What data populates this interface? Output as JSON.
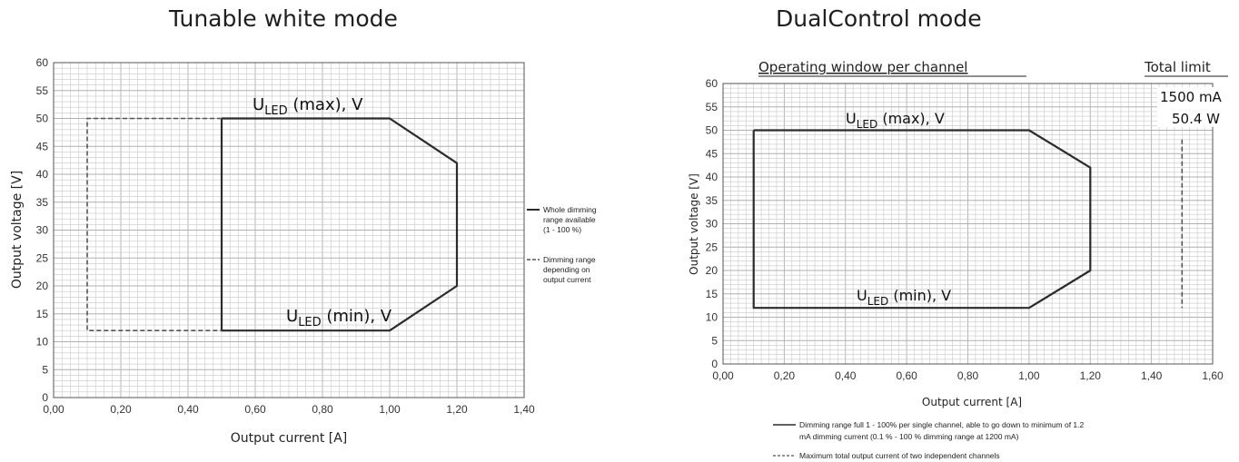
{
  "charts": {
    "left": {
      "title": "Tunable white mode",
      "xlabel": "Output current [A]",
      "ylabel": "Output voltage [V]",
      "xticks": [
        "0,00",
        "0,20",
        "0,40",
        "0,60",
        "0,80",
        "1,00",
        "1,20",
        "1,40"
      ],
      "yticks": [
        "0",
        "5",
        "10",
        "15",
        "20",
        "25",
        "30",
        "35",
        "40",
        "45",
        "50",
        "55",
        "60"
      ],
      "ann_max": {
        "u": "U",
        "sub": "LED",
        "rest": " (max), V"
      },
      "ann_min": {
        "u": "U",
        "sub": "LED",
        "rest": " (min), V"
      },
      "legend": {
        "solid": [
          "Whole dimming",
          "range available",
          "(1 - 100 %)"
        ],
        "dashed": [
          "Dimming range",
          "depending on",
          "output current"
        ]
      }
    },
    "right": {
      "title": "DualControl mode",
      "header_left": "Operating window per channel",
      "header_right": "Total limit",
      "limit_current": "1500 mA",
      "limit_power": "50.4 W",
      "xlabel": "Output current [A]",
      "ylabel": "Output voltage [V]",
      "xticks": [
        "0,00",
        "0,20",
        "0,40",
        "0,60",
        "0,80",
        "1,00",
        "1,20",
        "1,40",
        "1,60"
      ],
      "yticks": [
        "0",
        "5",
        "10",
        "15",
        "20",
        "25",
        "30",
        "35",
        "40",
        "45",
        "50",
        "55",
        "60"
      ],
      "ann_max": {
        "u": "U",
        "sub": "LED",
        "rest": " (max), V"
      },
      "ann_min": {
        "u": "U",
        "sub": "LED",
        "rest": " (min), V"
      },
      "legend": {
        "solid": [
          "Dimming range full 1 - 100% per single channel, able to go down to minimum of 1.2",
          "mA dimming current (0.1 % - 100 % dimming range at 1200 mA)"
        ],
        "dashed": [
          "Maximum total output current of two independent channels"
        ]
      }
    }
  },
  "colors": {
    "line": "#2b2b2b",
    "grid": "#c8c8c8",
    "grid_major": "#b0b0b0"
  },
  "chart_data": [
    {
      "type": "line",
      "title": "Tunable white mode",
      "xlabel": "Output current [A]",
      "ylabel": "Output voltage [V]",
      "xlim": [
        0,
        1.4
      ],
      "ylim": [
        0,
        60
      ],
      "series": [
        {
          "name": "Whole dimming range available (1 - 100 %)",
          "style": "solid",
          "x": [
            0.5,
            1.0,
            1.1,
            1.2,
            1.2,
            1.0,
            0.5,
            0.5
          ],
          "y": [
            50,
            50,
            46,
            42,
            20,
            12,
            12,
            50
          ]
        },
        {
          "name": "Dimming range depending on output current",
          "style": "dashed",
          "x": [
            0.5,
            0.1,
            0.1,
            0.5
          ],
          "y": [
            50,
            50,
            12,
            12
          ]
        }
      ]
    },
    {
      "type": "line",
      "title": "DualControl mode",
      "xlabel": "Output current [A]",
      "ylabel": "Output voltage [V]",
      "xlim": [
        0,
        1.6
      ],
      "ylim": [
        0,
        60
      ],
      "series": [
        {
          "name": "Dimming range full 1 - 100% per single channel, able to go down to minimum of 1.2 mA dimming current (0.1 % - 100 % dimming range at 1200 mA)",
          "style": "solid",
          "x": [
            0.1,
            1.0,
            1.1,
            1.2,
            1.2,
            1.0,
            0.1,
            0.1
          ],
          "y": [
            50,
            50,
            46,
            42,
            20,
            12,
            12,
            50
          ]
        },
        {
          "name": "Maximum total output current of two independent channels",
          "style": "dashed",
          "x": [
            1.5,
            1.5
          ],
          "y": [
            48,
            12
          ]
        }
      ]
    }
  ]
}
